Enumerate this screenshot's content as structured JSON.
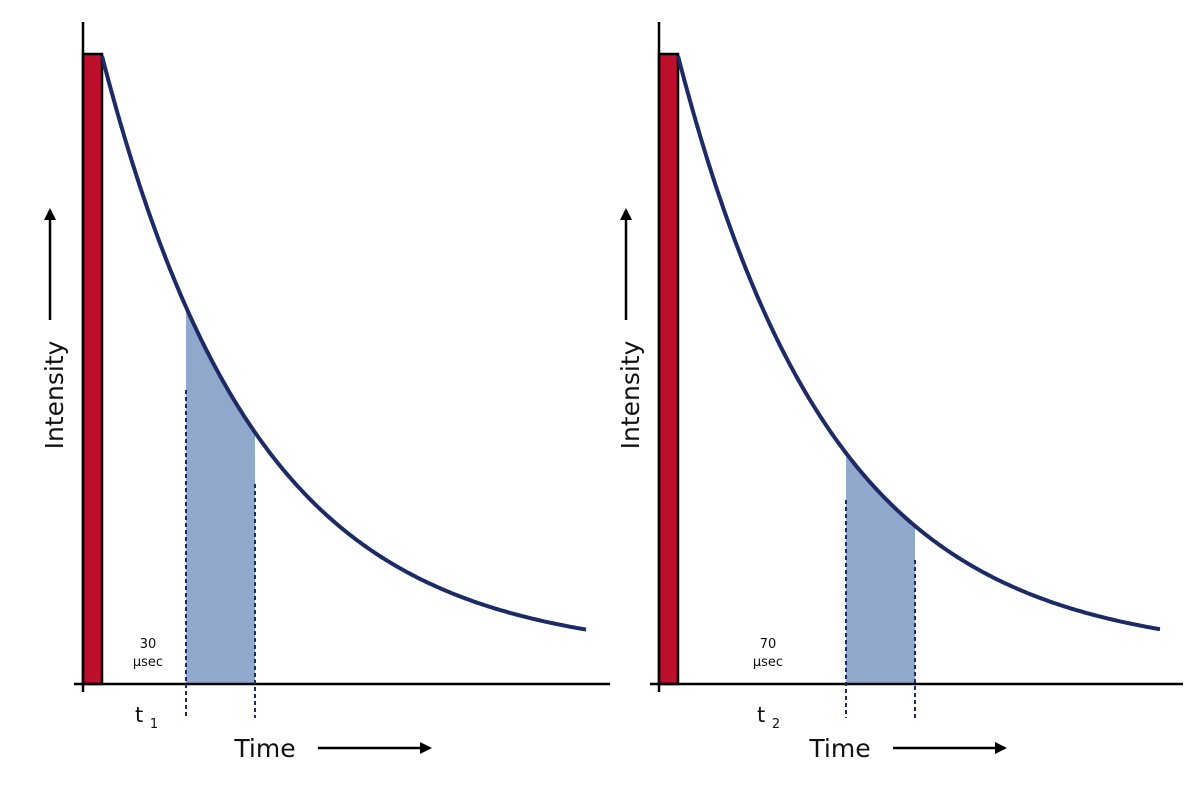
{
  "colors": {
    "excitation_pulse": "#BE0F2D",
    "decay_curve": "#1C2A66",
    "gate_window": "#8FA8CC",
    "axis": "#000000",
    "gate_marker": "#1C2A66"
  },
  "panels": [
    {
      "intensity_label": "Intensity",
      "time_label": "Time",
      "delay_label": "t",
      "delay_subscript": "1",
      "gate_value": "30",
      "gate_unit": "µsec"
    },
    {
      "intensity_label": "Intensity",
      "time_label": "Time",
      "delay_label": "t",
      "delay_subscript": "2",
      "gate_value": "70",
      "gate_unit": "µsec"
    }
  ]
}
